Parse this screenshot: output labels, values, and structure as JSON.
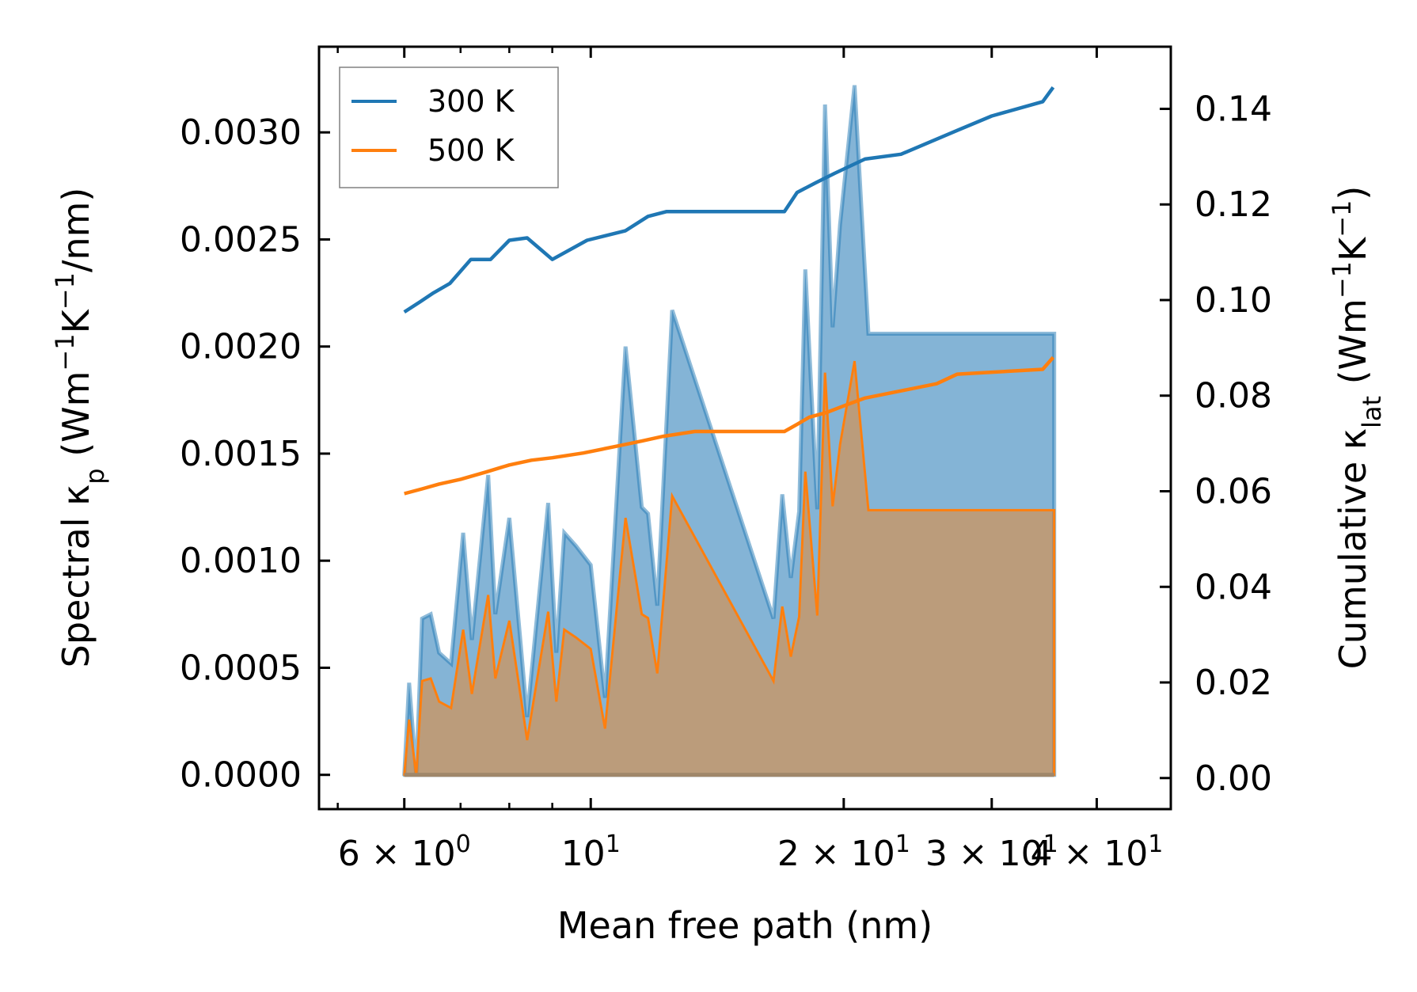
{
  "chart_data": {
    "type": "line",
    "xscale": "log",
    "xlabel": "Mean free path (nm)",
    "ylabel": "Spectral κp (Wm−1K−1/nm)",
    "y2label": "Cumulative κlat (Wm−1K−1)",
    "xlim": [
      4.75,
      49
    ],
    "ylim": [
      -0.00016,
      0.0034
    ],
    "y2lim": [
      -0.0065,
      0.153
    ],
    "xticks": [
      {
        "value": 6,
        "label": "6 × 10",
        "exp": "0"
      },
      {
        "value": 10,
        "label": "10",
        "exp": "1"
      },
      {
        "value": 20,
        "label": "2 × 10",
        "exp": "1"
      },
      {
        "value": 30,
        "label": "3 × 10",
        "exp": "1"
      },
      {
        "value": 40,
        "label": "4 × 10",
        "exp": "1"
      }
    ],
    "yticks": [
      "0.0000",
      "0.0005",
      "0.0010",
      "0.0015",
      "0.0020",
      "0.0025",
      "0.0030"
    ],
    "ytick_values": [
      0,
      0.0005,
      0.001,
      0.0015,
      0.002,
      0.0025,
      0.003
    ],
    "y2ticks": [
      "0.00",
      "0.02",
      "0.04",
      "0.06",
      "0.08",
      "0.10",
      "0.12",
      "0.14"
    ],
    "y2tick_values": [
      0,
      0.02,
      0.04,
      0.06,
      0.08,
      0.1,
      0.12,
      0.14
    ],
    "legend": {
      "location": "upper-left",
      "entries": [
        "300 K",
        "500 K"
      ]
    },
    "series": [
      {
        "name": "300 K",
        "color": "#1f77b4",
        "cumulative": {
          "x": [
            6.0,
            6.25,
            6.5,
            6.8,
            7.2,
            7.6,
            8.0,
            8.4,
            9.0,
            9.9,
            11.0,
            11.7,
            12.3,
            13.6,
            17.0,
            17.6,
            18.5,
            19.5,
            21.2,
            23.4,
            27.3,
            30.0,
            34.5,
            35.5
          ],
          "y": [
            0.0975,
            0.0995,
            0.1015,
            0.1035,
            0.1085,
            0.1085,
            0.1125,
            0.113,
            0.1085,
            0.1125,
            0.1145,
            0.1175,
            0.1185,
            0.1185,
            0.1185,
            0.1225,
            0.1245,
            0.1265,
            0.1295,
            0.1305,
            0.1355,
            0.1385,
            0.1415,
            0.1445
          ]
        },
        "spectral": {
          "x": [
            6.0,
            6.08,
            6.2,
            6.3,
            6.45,
            6.6,
            6.82,
            7.05,
            7.22,
            7.55,
            7.7,
            8.0,
            8.25,
            8.4,
            8.9,
            9.1,
            9.3,
            9.6,
            10.0,
            10.4,
            11.0,
            11.5,
            11.7,
            12.0,
            12.5,
            16.5,
            16.9,
            17.3,
            17.7,
            18.0,
            18.6,
            19.0,
            19.4,
            19.8,
            20.6,
            21.4,
            23.4,
            23.9,
            25.2,
            26.6,
            27.5,
            35.3,
            35.6
          ],
          "y": [
            0,
            0.00043,
            0,
            0.00073,
            0.00075,
            0.00057,
            0.00052,
            0.00113,
            0.00063,
            0.0014,
            0.00075,
            0.0012,
            0.00062,
            0.00027,
            0.00127,
            0.00057,
            0.00113,
            0.00107,
            0.00098,
            0.00036,
            0.002,
            0.00125,
            0.00122,
            0.00079,
            0.00217,
            0.00073,
            0.00131,
            0.00092,
            0.00123,
            0.00236,
            0.00124,
            0.00313,
            0.00209,
            0.00257,
            0.00322,
            0.00206,
            0.00206,
            0.00206,
            0.00206,
            0.00206,
            0.00206,
            0.00206,
            0.00206
          ]
        }
      },
      {
        "name": "500 K",
        "color": "#ff7f0e",
        "cumulative": {
          "x": [
            6.0,
            6.3,
            6.6,
            7.0,
            7.5,
            8.0,
            8.5,
            9.0,
            9.8,
            10.8,
            11.5,
            12.2,
            13.3,
            17.0,
            17.6,
            18.2,
            19.1,
            20.1,
            21.2,
            23.4,
            25.8,
            27.3,
            34.5,
            35.5
          ],
          "y": [
            0.0595,
            0.0605,
            0.0615,
            0.0625,
            0.064,
            0.0655,
            0.0665,
            0.067,
            0.068,
            0.0695,
            0.0705,
            0.0715,
            0.0725,
            0.0725,
            0.074,
            0.0755,
            0.0765,
            0.078,
            0.0795,
            0.081,
            0.0825,
            0.0845,
            0.0855,
            0.088
          ]
        }
      }
    ]
  }
}
